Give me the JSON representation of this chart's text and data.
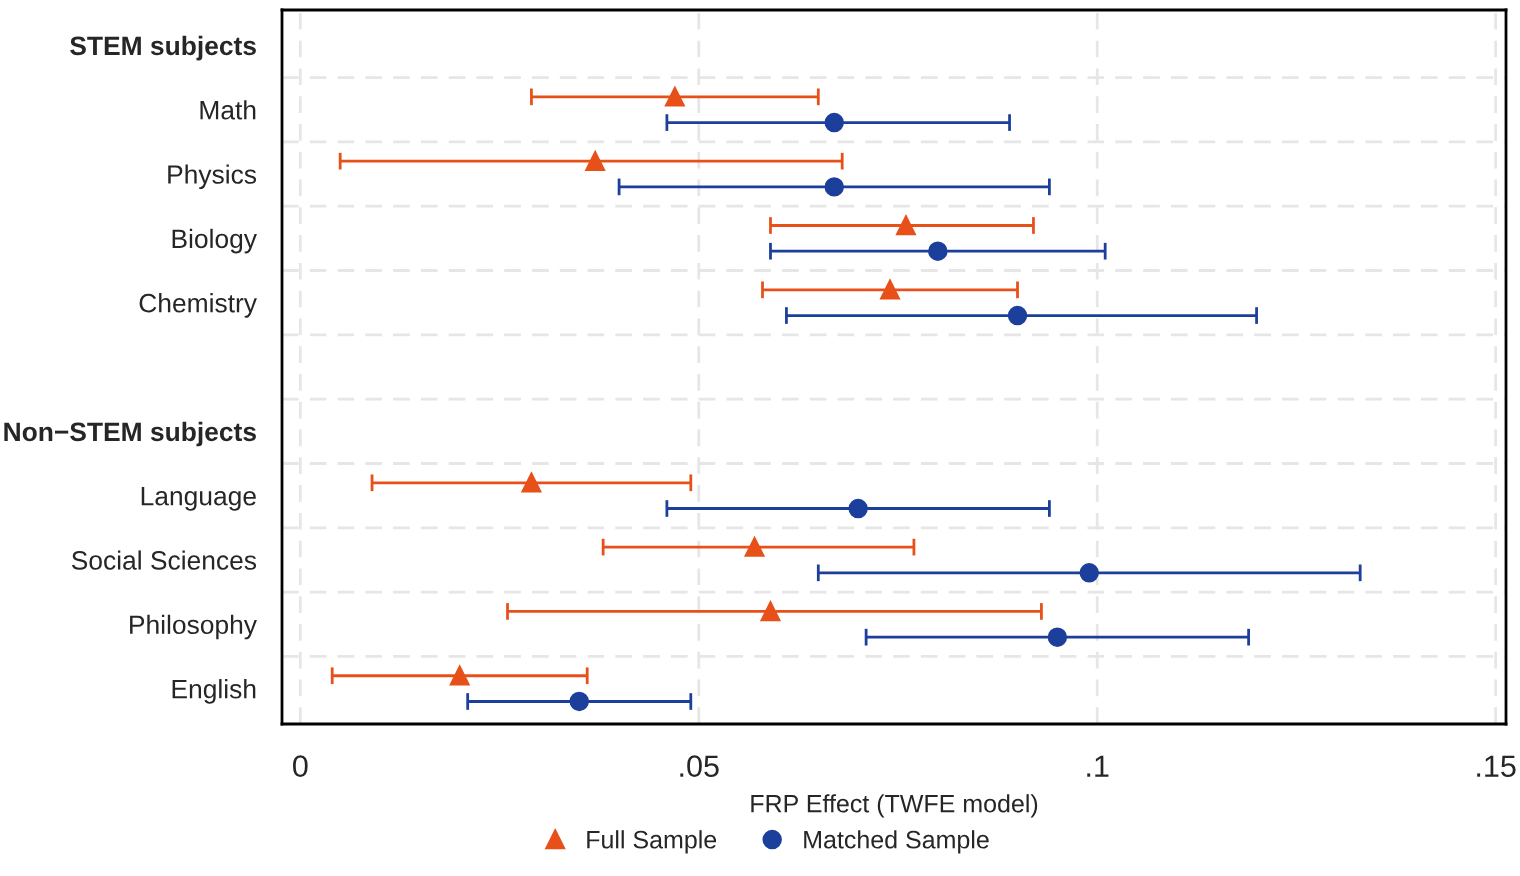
{
  "chart_data": {
    "type": "scatter",
    "orientation": "horizontal",
    "categories": [
      "STEM subjects",
      "Math",
      "Physics",
      "Biology",
      "Chemistry",
      null,
      "Non−STEM subjects",
      "Language",
      "Social Sciences",
      "Philosophy",
      "English"
    ],
    "series": [
      {
        "name": "Full Sample",
        "color": "#e8501a",
        "marker": "triangle",
        "values": [
          null,
          0.047,
          0.037,
          0.076,
          0.074,
          null,
          null,
          0.029,
          0.057,
          0.059,
          0.02
        ],
        "errors": [
          null,
          [
            0.029,
            0.065
          ],
          [
            0.005,
            0.068
          ],
          [
            0.059,
            0.092
          ],
          [
            0.058,
            0.09
          ],
          null,
          null,
          [
            0.009,
            0.049
          ],
          [
            0.038,
            0.077
          ],
          [
            0.026,
            0.093
          ],
          [
            0.004,
            0.036
          ]
        ]
      },
      {
        "name": "Matched Sample",
        "color": "#1c3f9c",
        "marker": "circle",
        "values": [
          null,
          0.067,
          0.067,
          0.08,
          0.09,
          null,
          null,
          0.07,
          0.099,
          0.095,
          0.035
        ],
        "errors": [
          null,
          [
            0.046,
            0.089
          ],
          [
            0.04,
            0.094
          ],
          [
            0.059,
            0.101
          ],
          [
            0.061,
            0.12
          ],
          null,
          null,
          [
            0.046,
            0.094
          ],
          [
            0.065,
            0.133
          ],
          [
            0.071,
            0.119
          ],
          [
            0.021,
            0.049
          ]
        ]
      }
    ],
    "xlabel": "FRP Effect (TWFE model)",
    "xlim": [
      -0.0023,
      0.1513
    ],
    "xticks": [
      {
        "value": 0,
        "label": "0"
      },
      {
        "value": 0.05,
        "label": ".05"
      },
      {
        "value": 0.1,
        "label": ".1"
      },
      {
        "value": 0.15,
        "label": ".15"
      }
    ],
    "grid": true,
    "legend": "bottom"
  }
}
